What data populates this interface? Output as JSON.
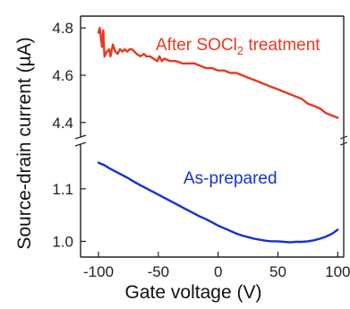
{
  "chart_data": {
    "type": "line",
    "title": "",
    "xlabel": "Gate voltage (V)",
    "ylabel": "Source-drain current (µA)",
    "xlim": [
      -115,
      105
    ],
    "x_ticks": [
      "-100",
      "-50",
      "0",
      "50",
      "100"
    ],
    "y_axis_break": true,
    "upper_panel": {
      "ylim": [
        4.35,
        4.85
      ],
      "y_ticks": [
        "4.4",
        "4.6",
        "4.8"
      ]
    },
    "lower_panel": {
      "ylim": [
        0.97,
        1.18
      ],
      "y_ticks": [
        "1.0",
        "1.1"
      ]
    },
    "grid": false,
    "legend": "none",
    "series": [
      {
        "name": "After SOCl2 treatment",
        "label_main": "After SOCl",
        "label_sub": "2",
        "label_tail": " treatment",
        "color": "#e8391d",
        "panel": "upper",
        "x": [
          -100,
          -99,
          -97,
          -96,
          -95,
          -93,
          -91,
          -90,
          -88,
          -86,
          -84,
          -82,
          -80,
          -78,
          -76,
          -74,
          -72,
          -70,
          -68,
          -65,
          -62,
          -60,
          -57,
          -54,
          -51,
          -49,
          -47,
          -45,
          -40,
          -35,
          -30,
          -25,
          -20,
          -15,
          -10,
          -5,
          0,
          5,
          10,
          15,
          20,
          25,
          30,
          35,
          40,
          45,
          50,
          55,
          60,
          65,
          70,
          75,
          80,
          85,
          90,
          95,
          100
        ],
        "y": [
          4.78,
          4.8,
          4.72,
          4.79,
          4.68,
          4.7,
          4.71,
          4.68,
          4.73,
          4.7,
          4.69,
          4.71,
          4.7,
          4.71,
          4.7,
          4.71,
          4.71,
          4.7,
          4.69,
          4.68,
          4.69,
          4.68,
          4.68,
          4.67,
          4.66,
          4.68,
          4.66,
          4.67,
          4.66,
          4.66,
          4.65,
          4.65,
          4.65,
          4.64,
          4.63,
          4.63,
          4.62,
          4.62,
          4.61,
          4.61,
          4.6,
          4.59,
          4.58,
          4.57,
          4.56,
          4.55,
          4.54,
          4.53,
          4.52,
          4.51,
          4.5,
          4.48,
          4.47,
          4.46,
          4.44,
          4.43,
          4.42
        ]
      },
      {
        "name": "As-prepared",
        "color": "#1530d8",
        "panel": "lower",
        "x": [
          -100,
          -95,
          -90,
          -85,
          -80,
          -75,
          -70,
          -65,
          -60,
          -55,
          -50,
          -45,
          -40,
          -35,
          -30,
          -25,
          -20,
          -15,
          -10,
          -5,
          0,
          5,
          10,
          15,
          20,
          25,
          30,
          35,
          40,
          45,
          50,
          55,
          60,
          65,
          70,
          75,
          80,
          85,
          90,
          95,
          100
        ],
        "y": [
          1.15,
          1.145,
          1.138,
          1.132,
          1.126,
          1.12,
          1.113,
          1.107,
          1.101,
          1.095,
          1.089,
          1.083,
          1.077,
          1.071,
          1.065,
          1.059,
          1.053,
          1.047,
          1.042,
          1.036,
          1.03,
          1.025,
          1.02,
          1.015,
          1.011,
          1.008,
          1.005,
          1.003,
          1.001,
          1.0,
          1.0,
          0.999,
          0.998,
          0.999,
          0.999,
          1.0,
          1.002,
          1.005,
          1.009,
          1.014,
          1.022
        ]
      }
    ]
  }
}
